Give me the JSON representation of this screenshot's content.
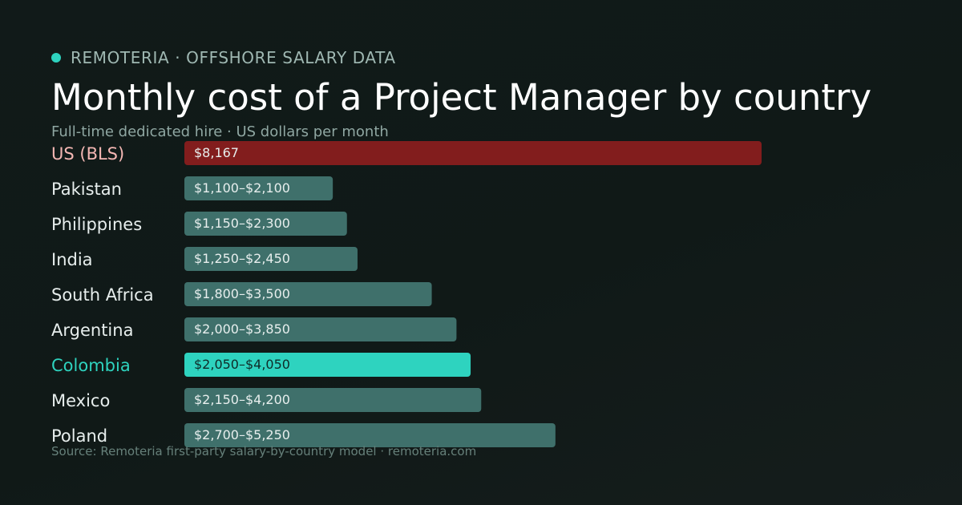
{
  "header": {
    "brand": "REMOTERIA · OFFSHORE SALARY DATA",
    "title": "Monthly cost of a Project Manager by country",
    "subtitle": "Full-time dedicated hire · US dollars per month",
    "source": "Source: Remoteria first-party salary-by-country model · remoteria.com"
  },
  "colors": {
    "accent": "#2ed3bf",
    "us_bar": "#821d1d",
    "us_label": "#f3b7b3",
    "default_bar": "#3f706b",
    "highlight_bar": "#2ed3bf",
    "highlight_label": "#2ed3bf",
    "label": "#e7eeed",
    "bar_text": "#e7eeed",
    "highlight_bar_text": "#0f2b28"
  },
  "chart_data": {
    "type": "bar",
    "orientation": "horizontal",
    "unit": "USD per month",
    "categories": [
      "US (BLS)",
      "Pakistan",
      "Philippines",
      "India",
      "South Africa",
      "Argentina",
      "Colombia",
      "Mexico",
      "Poland"
    ],
    "series": [
      {
        "values": [
          8167,
          2100,
          2300,
          2450,
          3500,
          3850,
          4050,
          4200,
          5250
        ],
        "labels": [
          "$8,167",
          "$1,100–$2,100",
          "$1,150–$2,300",
          "$1,250–$2,450",
          "$1,800–$3,500",
          "$2,000–$3,850",
          "$2,050–$4,050",
          "$2,150–$4,200",
          "$2,700–$5,250"
        ]
      }
    ],
    "ranges": [
      [
        8167,
        8167
      ],
      [
        1100,
        2100
      ],
      [
        1150,
        2300
      ],
      [
        1250,
        2450
      ],
      [
        1800,
        3500
      ],
      [
        2000,
        3850
      ],
      [
        2050,
        4050
      ],
      [
        2150,
        4200
      ],
      [
        2700,
        5250
      ]
    ],
    "styles": [
      "us",
      "default",
      "default",
      "default",
      "default",
      "default",
      "highlight",
      "default",
      "default"
    ],
    "xlim": [
      0,
      8167
    ],
    "grid": false,
    "legend": "none"
  }
}
